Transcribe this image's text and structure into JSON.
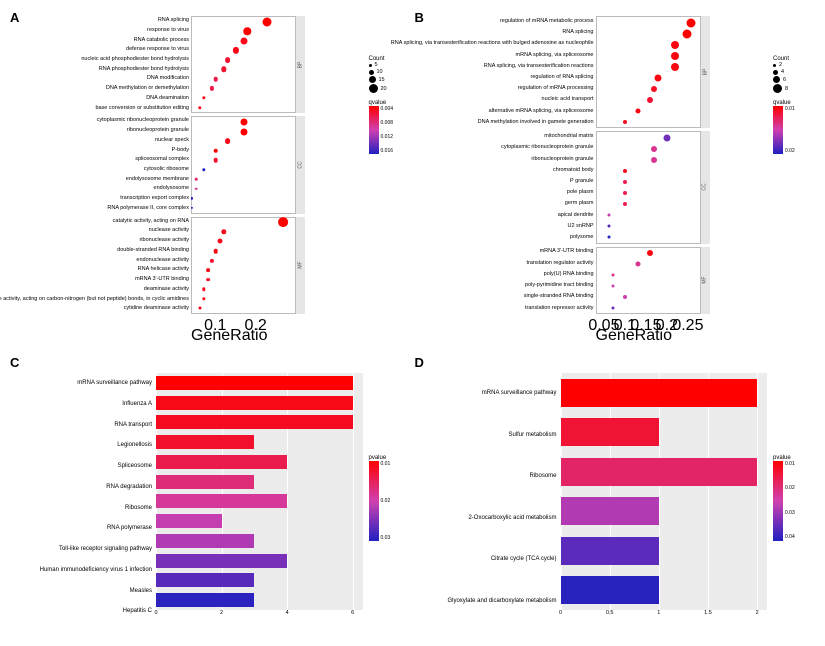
{
  "panels": {
    "A": "A",
    "B": "B",
    "C": "C",
    "D": "D"
  },
  "colors": {
    "panel_bg": "#ffffff",
    "bar_panel_bg": "#ececec",
    "grid_white": "#ffffff",
    "facet_strip": "#e6e6e6",
    "border": "#bbbbbb",
    "text": "#000000"
  },
  "panelA": {
    "x_label": "GeneRatio",
    "x_ticks": [
      0.1,
      0.2
    ],
    "x_domain": [
      0.04,
      0.3
    ],
    "plot_area_w": 105,
    "y_label_w": 165,
    "legend": {
      "count_title": "Count",
      "count_levels": [
        5,
        10,
        15,
        20
      ],
      "count_sizes": [
        3,
        5,
        7,
        9
      ],
      "qvalue_title": "qvalue",
      "qvalue_ticks": [
        "0.004",
        "0.008",
        "0.012",
        "0.016"
      ],
      "qvalue_gradient": [
        "#ff0000",
        "#2020c0"
      ]
    },
    "groups": [
      {
        "name": "BP",
        "rows": [
          {
            "label": "RNA splicing",
            "x": 0.23,
            "count": 20,
            "q": 0.002
          },
          {
            "label": "response to virus",
            "x": 0.18,
            "count": 16,
            "q": 0.002
          },
          {
            "label": "RNA catabolic process",
            "x": 0.17,
            "count": 15,
            "q": 0.003
          },
          {
            "label": "defense response to virus",
            "x": 0.15,
            "count": 13,
            "q": 0.003
          },
          {
            "label": "nucleic acid phosphodiester bond hydrolysis",
            "x": 0.13,
            "count": 12,
            "q": 0.004
          },
          {
            "label": "RNA phosphodiester bond hydrolysis",
            "x": 0.12,
            "count": 11,
            "q": 0.004
          },
          {
            "label": "DNA modification",
            "x": 0.1,
            "count": 9,
            "q": 0.005
          },
          {
            "label": "DNA methylation or demethylation",
            "x": 0.09,
            "count": 8,
            "q": 0.005
          },
          {
            "label": "DNA deamination",
            "x": 0.07,
            "count": 6,
            "q": 0.003
          },
          {
            "label": "base conversion or substitution editing",
            "x": 0.06,
            "count": 6,
            "q": 0.003
          }
        ]
      },
      {
        "name": "CC",
        "rows": [
          {
            "label": "cytoplasmic ribonucleoprotein granule",
            "x": 0.17,
            "count": 15,
            "q": 0.002
          },
          {
            "label": "ribonucleoprotein granule",
            "x": 0.17,
            "count": 15,
            "q": 0.002
          },
          {
            "label": "nuclear speck",
            "x": 0.13,
            "count": 12,
            "q": 0.003
          },
          {
            "label": "P-body",
            "x": 0.1,
            "count": 9,
            "q": 0.002
          },
          {
            "label": "spliceosomal complex",
            "x": 0.1,
            "count": 9,
            "q": 0.004
          },
          {
            "label": "cytosolic ribosome",
            "x": 0.07,
            "count": 6,
            "q": 0.016
          },
          {
            "label": "endolysosome membrane",
            "x": 0.05,
            "count": 4,
            "q": 0.006
          },
          {
            "label": "endolysosome",
            "x": 0.05,
            "count": 4,
            "q": 0.008
          },
          {
            "label": "transcription export complex",
            "x": 0.04,
            "count": 3,
            "q": 0.016
          },
          {
            "label": "RNA polymerase II, core complex",
            "x": 0.04,
            "count": 3,
            "q": 0.016
          }
        ]
      },
      {
        "name": "MF",
        "rows": [
          {
            "label": "catalytic activity, acting on RNA",
            "x": 0.27,
            "count": 22,
            "q": 0.002
          },
          {
            "label": "nuclease activity",
            "x": 0.12,
            "count": 11,
            "q": 0.003
          },
          {
            "label": "ribonuclease activity",
            "x": 0.11,
            "count": 10,
            "q": 0.003
          },
          {
            "label": "double-stranded RNA binding",
            "x": 0.1,
            "count": 9,
            "q": 0.003
          },
          {
            "label": "endonuclease activity",
            "x": 0.09,
            "count": 8,
            "q": 0.004
          },
          {
            "label": "RNA helicase activity",
            "x": 0.08,
            "count": 7,
            "q": 0.003
          },
          {
            "label": "mRNA 3'-UTR binding",
            "x": 0.08,
            "count": 7,
            "q": 0.004
          },
          {
            "label": "deaminase activity",
            "x": 0.07,
            "count": 6,
            "q": 0.003
          },
          {
            "label": "hydrolase activity, acting on carbon-nitrogen (but not peptide) bonds, in cyclic amidines",
            "x": 0.07,
            "count": 6,
            "q": 0.003
          },
          {
            "label": "cytidine deaminase activity",
            "x": 0.06,
            "count": 5,
            "q": 0.003
          }
        ]
      }
    ]
  },
  "panelB": {
    "x_label": "GeneRatio",
    "x_ticks": [
      0.05,
      0.1,
      0.15,
      0.2,
      0.25
    ],
    "x_domain": [
      0.03,
      0.28
    ],
    "plot_area_w": 105,
    "y_label_w": 165,
    "legend": {
      "count_title": "Count",
      "count_levels": [
        2,
        4,
        6,
        8
      ],
      "count_sizes": [
        3,
        5,
        7,
        9
      ],
      "qvalue_title": "qvalue",
      "qvalue_ticks": [
        "0.01",
        "0.02"
      ],
      "qvalue_gradient": [
        "#ff0000",
        "#2020c0"
      ]
    },
    "groups": [
      {
        "name": "BP",
        "rows": [
          {
            "label": "regulation of mRNA metabolic process",
            "x": 0.26,
            "count": 8,
            "q": 0.003
          },
          {
            "label": "RNA splicing",
            "x": 0.25,
            "count": 8,
            "q": 0.003
          },
          {
            "label": "RNA splicing, via transesterification reactions with bulged adenosine as nucleophile",
            "x": 0.22,
            "count": 7,
            "q": 0.004
          },
          {
            "label": "mRNA splicing, via spliceosome",
            "x": 0.22,
            "count": 7,
            "q": 0.004
          },
          {
            "label": "RNA splicing, via transesterification reactions",
            "x": 0.22,
            "count": 7,
            "q": 0.004
          },
          {
            "label": "regulation of RNA splicing",
            "x": 0.18,
            "count": 6,
            "q": 0.004
          },
          {
            "label": "regulation of mRNA processing",
            "x": 0.17,
            "count": 5,
            "q": 0.005
          },
          {
            "label": "nucleic acid transport",
            "x": 0.16,
            "count": 5,
            "q": 0.006
          },
          {
            "label": "alternative mRNA splicing, via spliceosome",
            "x": 0.13,
            "count": 4,
            "q": 0.004
          },
          {
            "label": "DNA methylation involved in gamete generation",
            "x": 0.1,
            "count": 3,
            "q": 0.005
          }
        ]
      },
      {
        "name": "CC",
        "rows": [
          {
            "label": "mitochondrial matrix",
            "x": 0.2,
            "count": 6,
            "q": 0.02
          },
          {
            "label": "cytoplasmic ribonucleoprotein granule",
            "x": 0.17,
            "count": 5,
            "q": 0.012
          },
          {
            "label": "ribonucleoprotein granule",
            "x": 0.17,
            "count": 5,
            "q": 0.012
          },
          {
            "label": "chromatoid body",
            "x": 0.1,
            "count": 3,
            "q": 0.005
          },
          {
            "label": "P granule",
            "x": 0.1,
            "count": 3,
            "q": 0.008
          },
          {
            "label": "pole plasm",
            "x": 0.1,
            "count": 3,
            "q": 0.008
          },
          {
            "label": "germ plasm",
            "x": 0.1,
            "count": 3,
            "q": 0.008
          },
          {
            "label": "apical dendrite",
            "x": 0.06,
            "count": 2,
            "q": 0.015
          },
          {
            "label": "U2 snRNP",
            "x": 0.06,
            "count": 2,
            "q": 0.022
          },
          {
            "label": "polysome",
            "x": 0.06,
            "count": 2,
            "q": 0.025
          }
        ]
      },
      {
        "name": "MF",
        "rows": [
          {
            "label": "mRNA 3'-UTR binding",
            "x": 0.16,
            "count": 5,
            "q": 0.004
          },
          {
            "label": "translation regulator activity",
            "x": 0.13,
            "count": 4,
            "q": 0.012
          },
          {
            "label": "poly(U) RNA binding",
            "x": 0.07,
            "count": 2,
            "q": 0.012
          },
          {
            "label": "poly-pyrimidine tract binding",
            "x": 0.07,
            "count": 2,
            "q": 0.014
          },
          {
            "label": "single-stranded RNA binding",
            "x": 0.1,
            "count": 3,
            "q": 0.014
          },
          {
            "label": "translation repressor activity",
            "x": 0.07,
            "count": 2,
            "q": 0.02
          }
        ]
      }
    ]
  },
  "panelC": {
    "x_domain": [
      0,
      6.3
    ],
    "x_ticks": [
      0,
      2,
      4,
      6
    ],
    "rows": [
      {
        "label": "mRNA surveillance pathway",
        "value": 6,
        "p": 0.001
      },
      {
        "label": "Influenza A",
        "value": 6,
        "p": 0.003
      },
      {
        "label": "RNA transport",
        "value": 6,
        "p": 0.004
      },
      {
        "label": "Legionellosis",
        "value": 3,
        "p": 0.005
      },
      {
        "label": "Spliceosome",
        "value": 4,
        "p": 0.008
      },
      {
        "label": "RNA degradation",
        "value": 3,
        "p": 0.012
      },
      {
        "label": "Ribosome",
        "value": 4,
        "p": 0.015
      },
      {
        "label": "RNA polymerase",
        "value": 2,
        "p": 0.018
      },
      {
        "label": "Toll-like receptor signaling pathway",
        "value": 3,
        "p": 0.02
      },
      {
        "label": "Human immunodeficiency virus 1 infection",
        "value": 4,
        "p": 0.025
      },
      {
        "label": "Measles",
        "value": 3,
        "p": 0.028
      },
      {
        "label": "Hepatitis C",
        "value": 3,
        "p": 0.032
      }
    ],
    "legend": {
      "title": "pvalue",
      "ticks": [
        "0.01",
        "0.02",
        "0.03"
      ],
      "gradient": [
        "#ff0000",
        "#2020c0"
      ],
      "domain": [
        0.001,
        0.033
      ]
    }
  },
  "panelD": {
    "x_domain": [
      0,
      2.1
    ],
    "x_ticks": [
      0,
      0.5,
      1.0,
      1.5,
      2.0
    ],
    "rows": [
      {
        "label": "mRNA surveillance pathway",
        "value": 2,
        "p": 0.004
      },
      {
        "label": "Sulfur metabolism",
        "value": 1,
        "p": 0.01
      },
      {
        "label": "Ribosome",
        "value": 2,
        "p": 0.016
      },
      {
        "label": "2-Oxocarboxylic acid metabolism",
        "value": 1,
        "p": 0.028
      },
      {
        "label": "Citrate cycle (TCA cycle)",
        "value": 1,
        "p": 0.038
      },
      {
        "label": "Glyoxylate and dicarboxylate metabolism",
        "value": 1,
        "p": 0.044
      }
    ],
    "legend": {
      "title": "pvalue",
      "ticks": [
        "0.01",
        "0.02",
        "0.03",
        "0.04"
      ],
      "gradient": [
        "#ff0000",
        "#2020c0"
      ],
      "domain": [
        0.004,
        0.045
      ]
    }
  }
}
